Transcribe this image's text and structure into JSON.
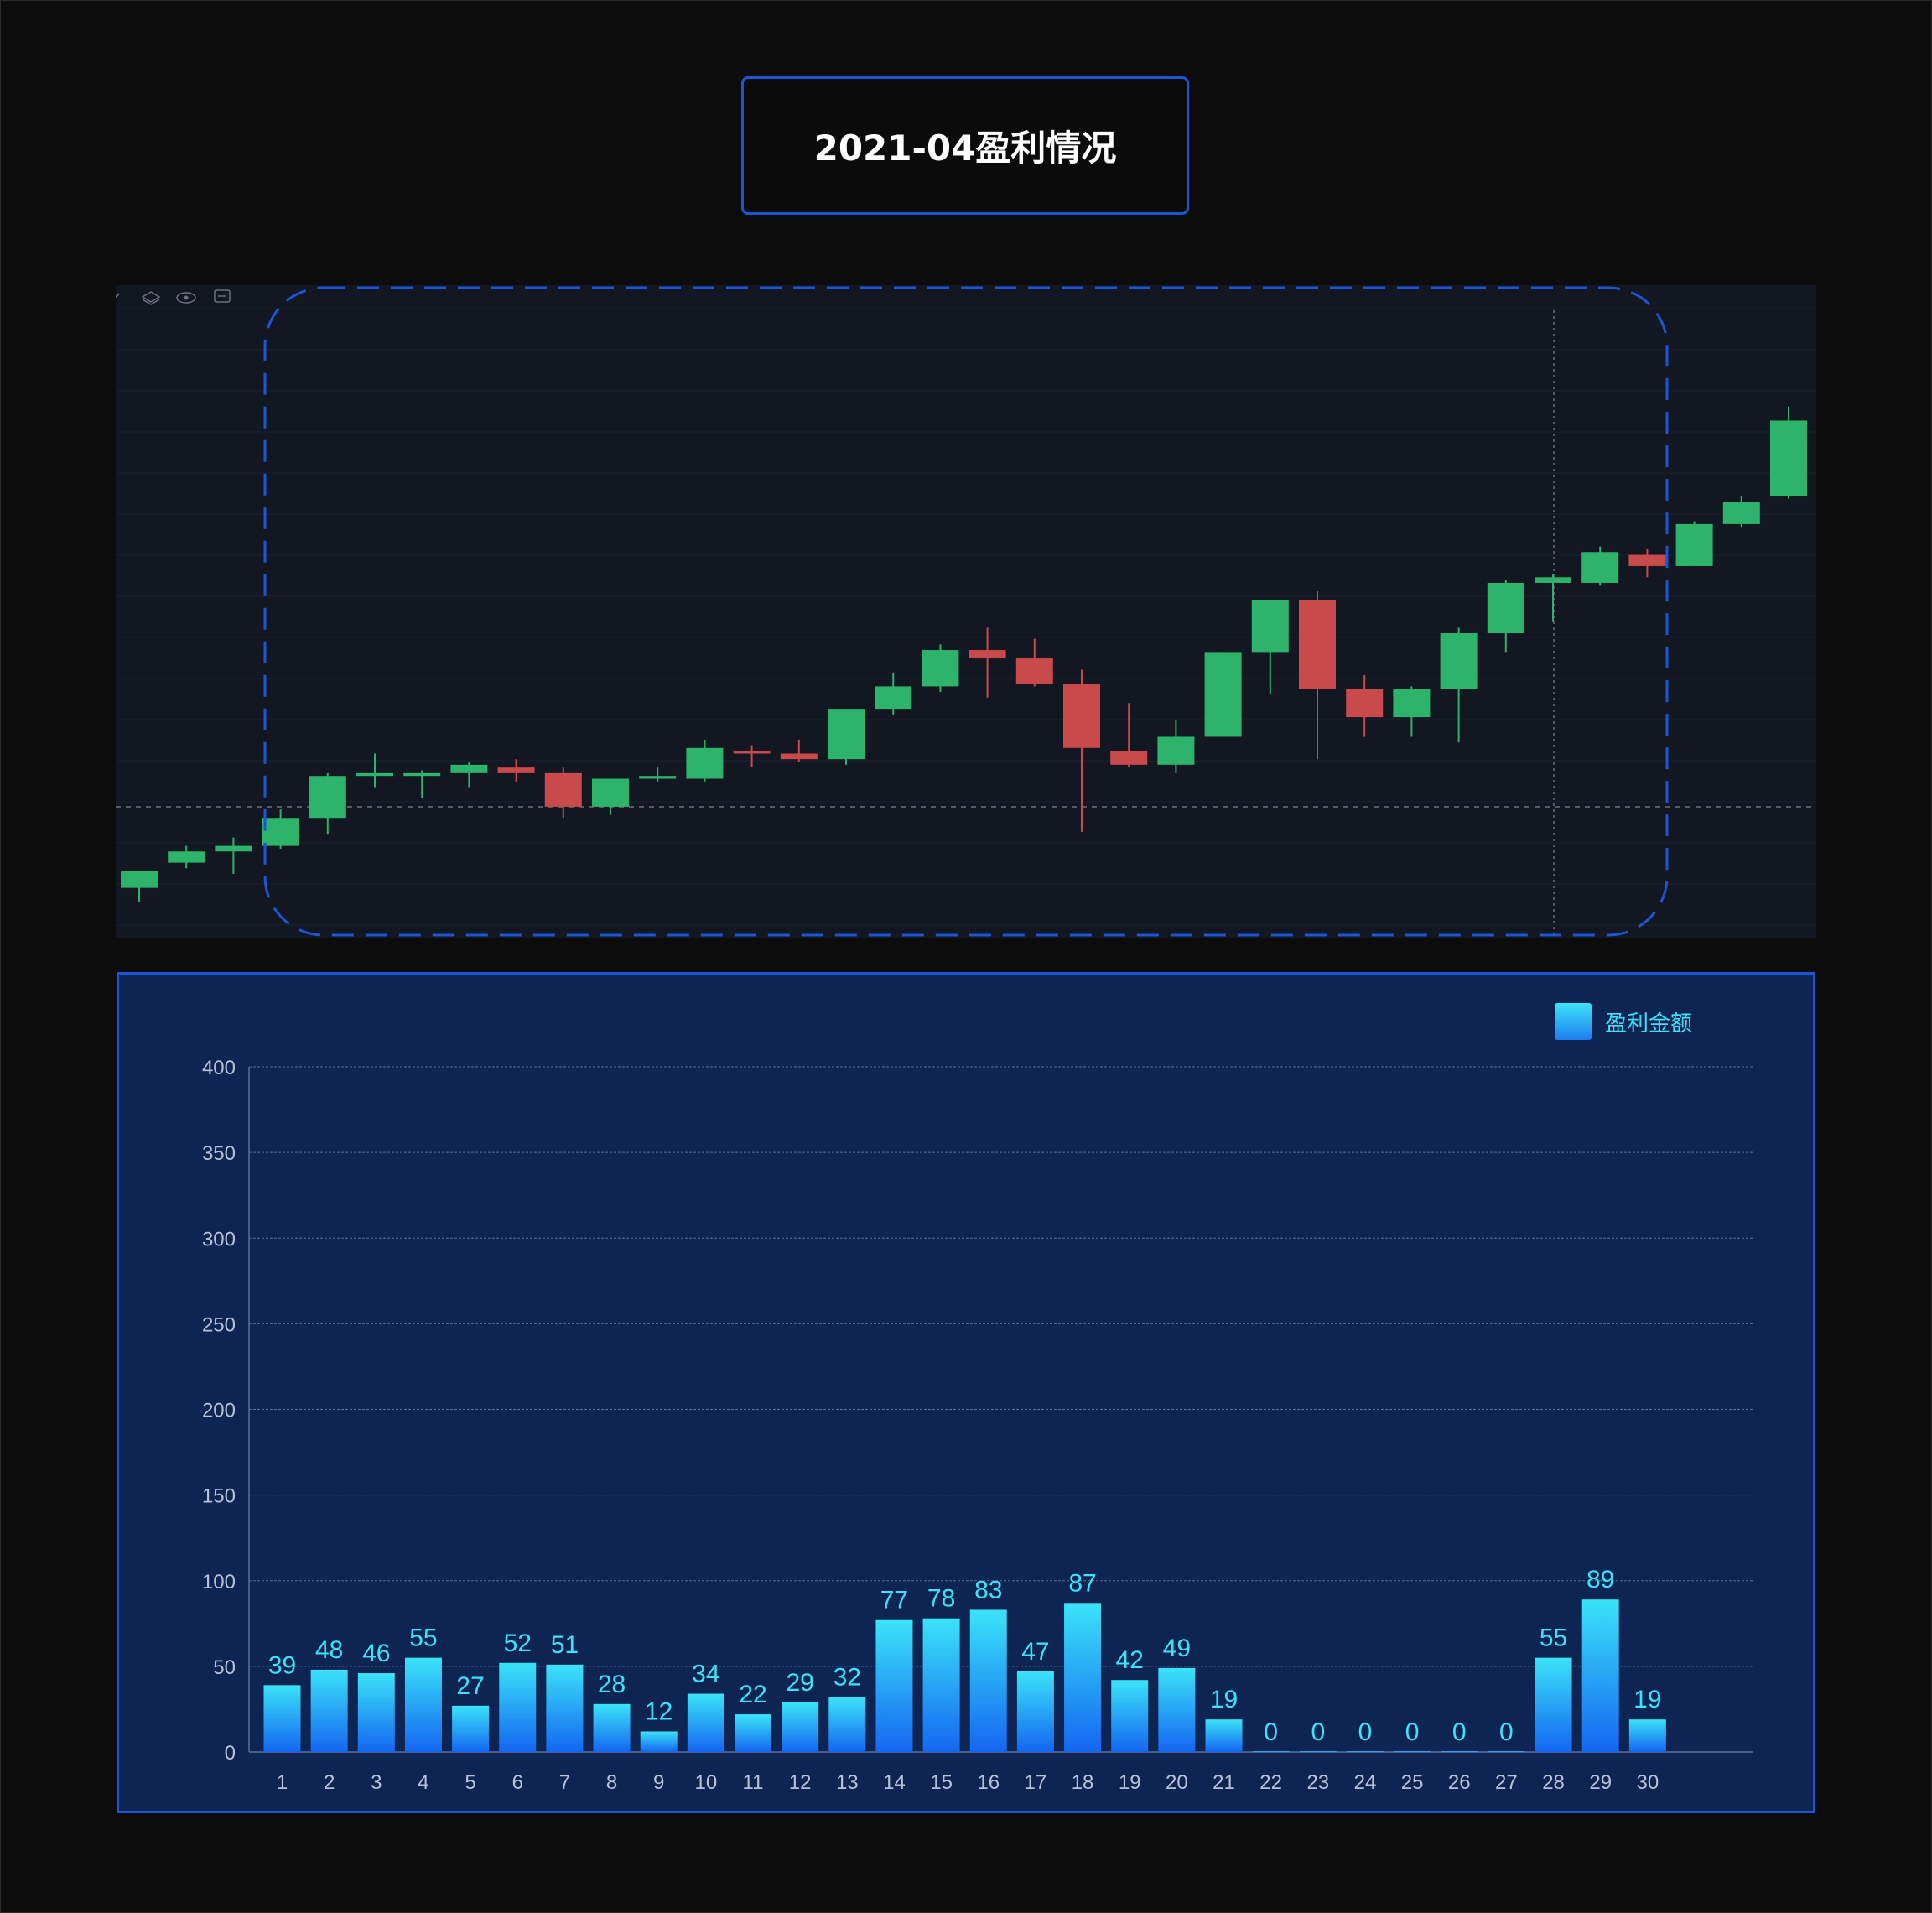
{
  "header": {
    "title": "2021-04盈利情况"
  },
  "colors": {
    "accent": "#1a56d6",
    "candle_up": "#2db36a",
    "candle_down": "#c84a4a",
    "bar_top": "#3ae3f8",
    "bar_bottom": "#1466f2",
    "value_label": "#3ae3f8"
  },
  "kline_toolbar_icons": [
    "layers-icon",
    "eye-icon",
    "settings-icon"
  ],
  "chart_data": [
    {
      "type": "candlestick",
      "title": "",
      "grid": true,
      "candles": [
        {
          "open": 5,
          "close": 11,
          "high": 11,
          "low": 0
        },
        {
          "open": 14,
          "close": 18,
          "high": 20,
          "low": 12
        },
        {
          "open": 18,
          "close": 20,
          "high": 23,
          "low": 10
        },
        {
          "open": 20,
          "close": 30,
          "high": 33,
          "low": 19
        },
        {
          "open": 30,
          "close": 45,
          "high": 46,
          "low": 24
        },
        {
          "open": 45,
          "close": 46,
          "high": 53,
          "low": 41
        },
        {
          "open": 45,
          "close": 46,
          "high": 47,
          "low": 37
        },
        {
          "open": 46,
          "close": 49,
          "high": 50,
          "low": 41
        },
        {
          "open": 48,
          "close": 46,
          "high": 51,
          "low": 43
        },
        {
          "open": 46,
          "close": 34,
          "high": 48,
          "low": 30
        },
        {
          "open": 34,
          "close": 44,
          "high": 44,
          "low": 31
        },
        {
          "open": 44,
          "close": 45,
          "high": 48,
          "low": 43
        },
        {
          "open": 44,
          "close": 55,
          "high": 58,
          "low": 43
        },
        {
          "open": 54,
          "close": 53,
          "high": 56,
          "low": 48
        },
        {
          "open": 53,
          "close": 51,
          "high": 58,
          "low": 50
        },
        {
          "open": 51,
          "close": 69,
          "high": 69,
          "low": 49
        },
        {
          "open": 69,
          "close": 77,
          "high": 82,
          "low": 67
        },
        {
          "open": 77,
          "close": 90,
          "high": 92,
          "low": 75
        },
        {
          "open": 90,
          "close": 87,
          "high": 98,
          "low": 73
        },
        {
          "open": 87,
          "close": 78,
          "high": 94,
          "low": 77
        },
        {
          "open": 78,
          "close": 55,
          "high": 83,
          "low": 25
        },
        {
          "open": 54,
          "close": 49,
          "high": 71,
          "low": 48
        },
        {
          "open": 49,
          "close": 59,
          "high": 65,
          "low": 46
        },
        {
          "open": 59,
          "close": 89,
          "high": 89,
          "low": 59
        },
        {
          "open": 89,
          "close": 108,
          "high": 108,
          "low": 74
        },
        {
          "open": 108,
          "close": 76,
          "high": 111,
          "low": 51
        },
        {
          "open": 76,
          "close": 66,
          "high": 81,
          "low": 59
        },
        {
          "open": 66,
          "close": 76,
          "high": 77,
          "low": 59
        },
        {
          "open": 76,
          "close": 96,
          "high": 98,
          "low": 57
        },
        {
          "open": 96,
          "close": 114,
          "high": 115,
          "low": 89
        },
        {
          "open": 114,
          "close": 116,
          "high": 117,
          "low": 100
        },
        {
          "open": 114,
          "close": 125,
          "high": 127,
          "low": 113
        },
        {
          "open": 124,
          "close": 120,
          "high": 126,
          "low": 116
        },
        {
          "open": 120,
          "close": 135,
          "high": 136,
          "low": 120
        },
        {
          "open": 135,
          "close": 143,
          "high": 145,
          "low": 134
        },
        {
          "open": 145,
          "close": 172,
          "high": 177,
          "low": 144
        }
      ]
    },
    {
      "type": "bar",
      "title": "",
      "categories": [
        "1",
        "2",
        "3",
        "4",
        "5",
        "6",
        "7",
        "8",
        "9",
        "10",
        "11",
        "12",
        "13",
        "14",
        "15",
        "16",
        "17",
        "18",
        "19",
        "20",
        "21",
        "22",
        "23",
        "24",
        "25",
        "26",
        "27",
        "28",
        "29",
        "30"
      ],
      "series": [
        {
          "name": "盈利金额",
          "values": [
            39,
            48,
            46,
            55,
            27,
            52,
            51,
            28,
            12,
            34,
            22,
            29,
            32,
            77,
            78,
            83,
            47,
            87,
            42,
            49,
            19,
            0,
            0,
            0,
            0,
            0,
            0,
            55,
            89,
            19
          ]
        }
      ],
      "ylim": [
        0,
        400
      ],
      "yticks": [
        0,
        50,
        100,
        150,
        200,
        250,
        300,
        350,
        400
      ],
      "grid": true,
      "legend_position": "top-right"
    }
  ]
}
